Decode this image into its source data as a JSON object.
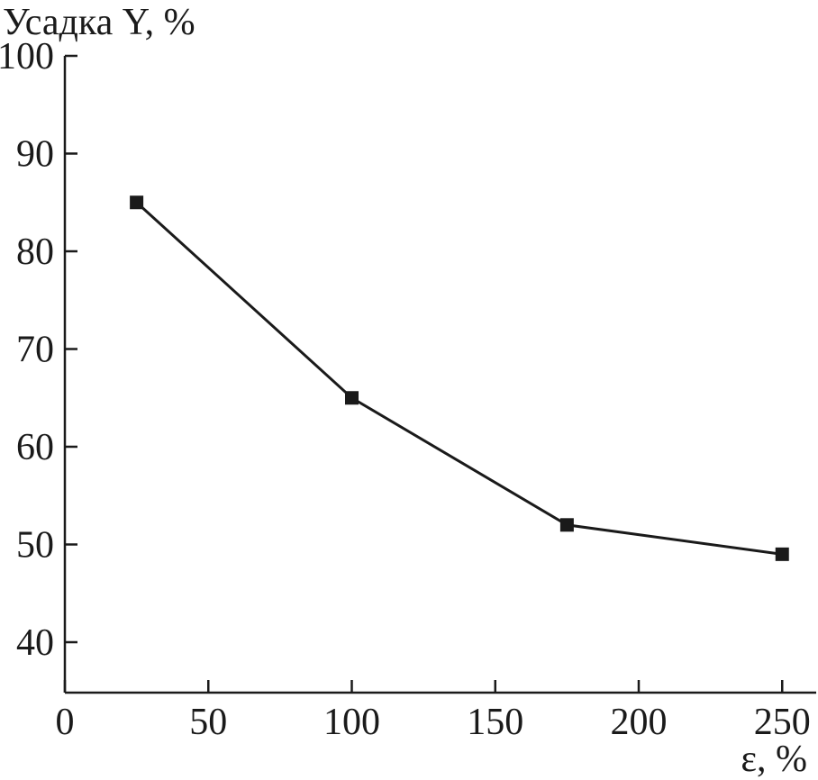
{
  "chart_data": {
    "type": "line",
    "title": "",
    "ylabel": "Усадка Y, %",
    "xlabel": "ε, %",
    "xlim": [
      0,
      260
    ],
    "ylim": [
      35,
      100
    ],
    "x_ticks": [
      0,
      50,
      100,
      150,
      200,
      250
    ],
    "y_ticks": [
      40,
      50,
      60,
      70,
      80,
      90,
      100
    ],
    "series": [
      {
        "x": [
          25,
          100,
          175,
          250
        ],
        "y": [
          85,
          65,
          52,
          49
        ],
        "marker": "square",
        "color": "#1a1a1a"
      }
    ],
    "grid": false,
    "legend": "none"
  }
}
